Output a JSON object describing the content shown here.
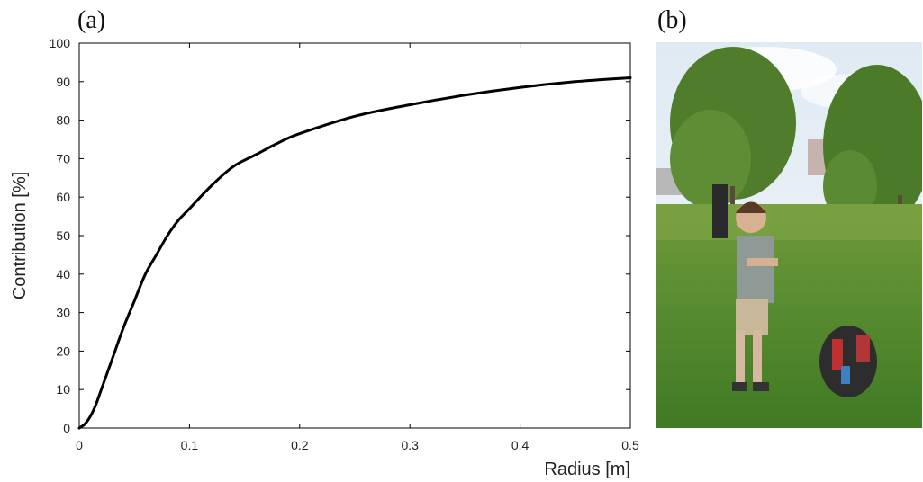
{
  "figure": {
    "panel_a_label": "(a)",
    "panel_b_label": "(b)"
  },
  "colors": {
    "curve": "#000000",
    "axis": "#000000",
    "text": "#222222"
  },
  "chart_data": {
    "type": "line",
    "title": "",
    "xlabel": "Radius [m]",
    "ylabel": "Contribution [%]",
    "xlim": [
      0,
      0.5
    ],
    "ylim": [
      0,
      100
    ],
    "grid": false,
    "xticks": [
      0,
      0.1,
      0.2,
      0.3,
      0.4,
      0.5
    ],
    "xtick_labels": [
      "0",
      "0.1",
      "0.2",
      "0.3",
      "0.4",
      "0.5"
    ],
    "yticks": [
      0,
      10,
      20,
      30,
      40,
      50,
      60,
      70,
      80,
      90,
      100
    ],
    "ytick_labels": [
      "0",
      "10",
      "20",
      "30",
      "40",
      "50",
      "60",
      "70",
      "80",
      "90",
      "100"
    ],
    "series": [
      {
        "x": [
          0,
          0.005,
          0.01,
          0.015,
          0.02,
          0.025,
          0.03,
          0.04,
          0.05,
          0.06,
          0.07,
          0.08,
          0.09,
          0.1,
          0.12,
          0.14,
          0.16,
          0.18,
          0.2,
          0.25,
          0.3,
          0.35,
          0.4,
          0.45,
          0.5
        ],
        "y": [
          0,
          1,
          3,
          6,
          10,
          14,
          18,
          26,
          33,
          40,
          45,
          50,
          54,
          57,
          63,
          68,
          71,
          74,
          76.5,
          81,
          84,
          86.5,
          88.5,
          90,
          91
        ]
      }
    ]
  },
  "photo": {
    "description_icon": "photo-person-field"
  }
}
